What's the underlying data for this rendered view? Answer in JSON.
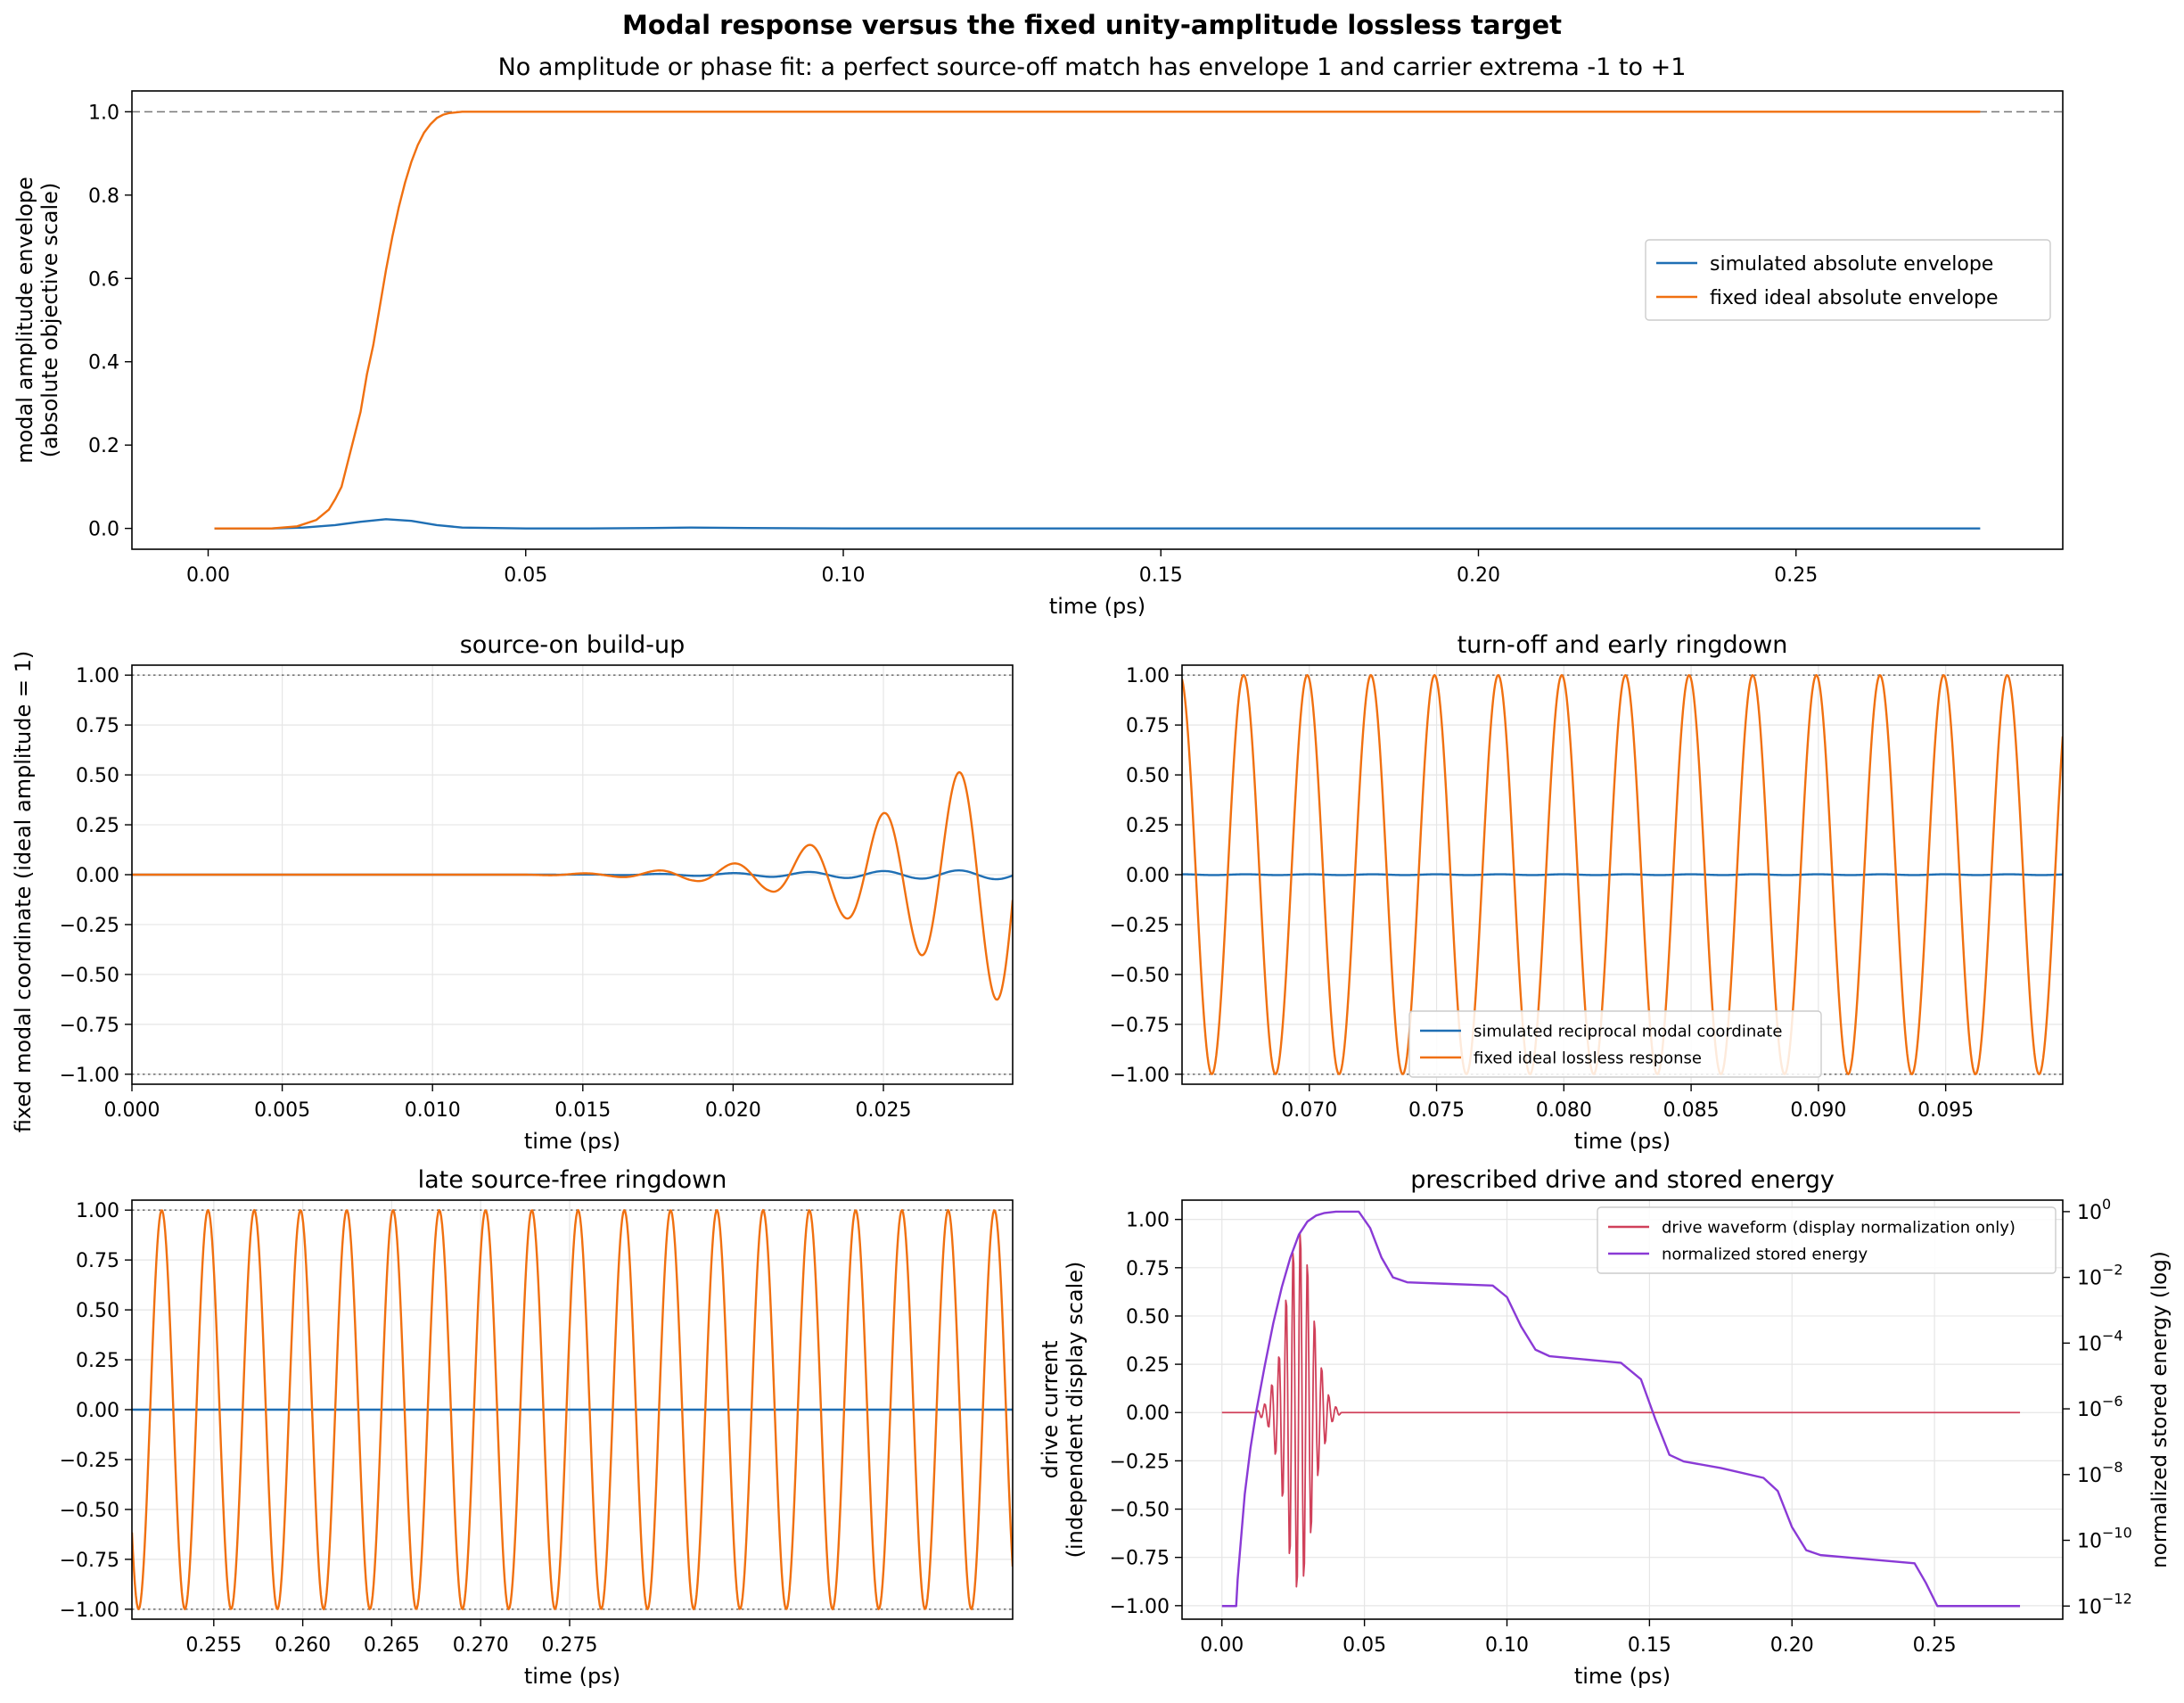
{
  "figure": {
    "title": "Modal response versus the fixed unity-amplitude lossless target",
    "subtitle": "No amplitude or phase fit: a perfect source-off match has envelope 1 and carrier extrema -1 to +1",
    "shared_ylabel": "fixed modal coordinate (ideal amplitude = 1)"
  },
  "colors": {
    "simulated": "#1f6fb4",
    "ideal": "#f07010",
    "drive": "#d0405a",
    "energy": "#8a3ad6",
    "reference_line": "#777777",
    "grid": "#e6e6e6"
  },
  "chart_data": [
    {
      "id": "envelope",
      "type": "line",
      "title": "",
      "xlabel": "time (ps)",
      "ylabel": [
        "modal amplitude envelope",
        "(absolute objective scale)"
      ],
      "xlim": [
        -0.012,
        0.292
      ],
      "ylim": [
        -0.05,
        1.05
      ],
      "xticks": [
        0.0,
        0.05,
        0.1,
        0.15,
        0.2,
        0.25
      ],
      "xtick_labels": [
        "0.00",
        "0.05",
        "0.10",
        "0.15",
        "0.20",
        "0.25"
      ],
      "yticks": [
        0.0,
        0.2,
        0.4,
        0.6,
        0.8,
        1.0
      ],
      "ytick_labels": [
        "0.0",
        "0.2",
        "0.4",
        "0.6",
        "0.8",
        "1.0"
      ],
      "grid": false,
      "reference_lines": [
        {
          "y": 1.0,
          "style": "dashed"
        }
      ],
      "legend": {
        "position": "center-right",
        "entries": [
          "simulated absolute envelope",
          "fixed ideal absolute envelope"
        ]
      },
      "series": [
        {
          "name": "simulated absolute envelope",
          "color_key": "simulated",
          "x": [
            0.001,
            0.01,
            0.015,
            0.02,
            0.024,
            0.028,
            0.032,
            0.036,
            0.04,
            0.05,
            0.06,
            0.07,
            0.076,
            0.085,
            0.1,
            0.15,
            0.2,
            0.279
          ],
          "y": [
            0.0,
            0.0,
            0.002,
            0.008,
            0.016,
            0.022,
            0.018,
            0.008,
            0.002,
            0.0,
            0.0,
            0.001,
            0.002,
            0.001,
            0.0,
            0.0,
            0.0,
            0.0
          ]
        },
        {
          "name": "fixed ideal absolute envelope",
          "color_key": "ideal",
          "x": [
            0.001,
            0.01,
            0.014,
            0.017,
            0.019,
            0.02,
            0.021,
            0.022,
            0.023,
            0.024,
            0.025,
            0.026,
            0.027,
            0.028,
            0.029,
            0.03,
            0.031,
            0.032,
            0.033,
            0.034,
            0.035,
            0.036,
            0.037,
            0.038,
            0.04,
            0.042,
            0.05,
            0.1,
            0.15,
            0.2,
            0.279
          ],
          "y": [
            0.0,
            0.0,
            0.005,
            0.02,
            0.045,
            0.07,
            0.1,
            0.16,
            0.22,
            0.28,
            0.37,
            0.44,
            0.53,
            0.62,
            0.7,
            0.77,
            0.83,
            0.88,
            0.92,
            0.95,
            0.97,
            0.985,
            0.993,
            0.997,
            1.0,
            1.0,
            1.0,
            1.0,
            1.0,
            1.0,
            1.0
          ]
        }
      ]
    },
    {
      "id": "buildup",
      "type": "line",
      "title": "source-on build-up",
      "xlabel": "time (ps)",
      "ylabel": "",
      "xlim": [
        0.0,
        0.0293
      ],
      "ylim": [
        -1.05,
        1.05
      ],
      "xticks": [
        0.0,
        0.005,
        0.01,
        0.015,
        0.02,
        0.025
      ],
      "xtick_labels": [
        "0.000",
        "0.005",
        "0.010",
        "0.015",
        "0.020",
        "0.025"
      ],
      "yticks": [
        -1.0,
        -0.75,
        -0.5,
        -0.25,
        0.0,
        0.25,
        0.5,
        0.75,
        1.0
      ],
      "ytick_labels": [
        "−1.00",
        "−0.75",
        "−0.50",
        "−0.25",
        "0.00",
        "0.25",
        "0.50",
        "0.75",
        "1.00"
      ],
      "grid": true,
      "reference_lines": [
        {
          "y": 1.0,
          "style": "dotted"
        },
        {
          "y": -1.0,
          "style": "dotted"
        }
      ],
      "legend": null,
      "carrier_period_ps": 0.0025,
      "series": [
        {
          "name": "simulated reciprocal modal coordinate",
          "color_key": "simulated",
          "form": "carrier",
          "phase": 0.0,
          "envelope_t": [
            0.0,
            0.014,
            0.017,
            0.02,
            0.024,
            0.028,
            0.0293
          ],
          "envelope_a": [
            0.0,
            0.0,
            0.003,
            0.008,
            0.017,
            0.022,
            0.023
          ]
        },
        {
          "name": "fixed ideal lossless response",
          "color_key": "ideal",
          "form": "carrier",
          "phase": 0.0,
          "envelope_t": [
            0.0,
            0.013,
            0.016,
            0.0187,
            0.0212,
            0.0235,
            0.026,
            0.0285,
            0.0293
          ],
          "envelope_a": [
            0.0,
            0.0,
            0.01,
            0.03,
            0.08,
            0.2,
            0.38,
            0.6,
            0.68
          ]
        }
      ]
    },
    {
      "id": "early",
      "type": "line",
      "title": "turn-off and early ringdown",
      "xlabel": "time (ps)",
      "ylabel": "",
      "xlim": [
        0.065,
        0.0996
      ],
      "ylim": [
        -1.05,
        1.05
      ],
      "xticks": [
        0.07,
        0.075,
        0.08,
        0.085,
        0.09,
        0.095
      ],
      "xtick_labels": [
        "0.070",
        "0.075",
        "0.080",
        "0.085",
        "0.090",
        "0.095"
      ],
      "yticks": [
        -1.0,
        -0.75,
        -0.5,
        -0.25,
        0.0,
        0.25,
        0.5,
        0.75,
        1.0
      ],
      "ytick_labels": [
        "−1.00",
        "−0.75",
        "−0.50",
        "−0.25",
        "0.00",
        "0.25",
        "0.50",
        "0.75",
        "1.00"
      ],
      "grid": true,
      "reference_lines": [
        {
          "y": 1.0,
          "style": "dotted"
        },
        {
          "y": -1.0,
          "style": "dotted"
        }
      ],
      "legend": {
        "position": "lower-center",
        "entries": [
          "simulated reciprocal modal coordinate",
          "fixed ideal lossless response"
        ]
      },
      "carrier_period_ps": 0.0025,
      "series": [
        {
          "name": "simulated reciprocal modal coordinate",
          "color_key": "simulated",
          "form": "carrier",
          "phase": 0.0,
          "envelope_t": [
            0.065,
            0.0996
          ],
          "envelope_a": [
            0.002,
            0.002
          ]
        },
        {
          "name": "fixed ideal lossless response",
          "color_key": "ideal",
          "form": "carrier",
          "phase": 0.2,
          "envelope_t": [
            0.065,
            0.0996
          ],
          "envelope_a": [
            1.0,
            1.0
          ]
        }
      ]
    },
    {
      "id": "late",
      "type": "line",
      "title": "late source-free ringdown",
      "xlabel": "time (ps)",
      "ylabel": "",
      "xlim": [
        0.2504,
        0.2999
      ],
      "ylim": [
        -1.05,
        1.05
      ],
      "xticks": [
        0.255,
        0.26,
        0.265,
        0.27,
        0.275
      ],
      "xtick_labels": [
        "0.255",
        "0.260",
        "0.265",
        "0.270",
        "0.275"
      ],
      "yticks": [
        -1.0,
        -0.75,
        -0.5,
        -0.25,
        0.0,
        0.25,
        0.5,
        0.75,
        1.0
      ],
      "ytick_labels": [
        "−1.00",
        "−0.75",
        "−0.50",
        "−0.25",
        "0.00",
        "0.25",
        "0.50",
        "0.75",
        "1.00"
      ],
      "grid": true,
      "reference_lines": [
        {
          "y": 1.0,
          "style": "dotted"
        },
        {
          "y": -1.0,
          "style": "dotted"
        }
      ],
      "legend": null,
      "carrier_period_ps": 0.0026,
      "series": [
        {
          "name": "simulated reciprocal modal coordinate",
          "color_key": "simulated",
          "form": "carrier",
          "phase": 0.0,
          "envelope_t": [
            0.2504,
            0.2999
          ],
          "envelope_a": [
            0.0,
            0.0
          ]
        },
        {
          "name": "fixed ideal lossless response",
          "color_key": "ideal",
          "form": "carrier",
          "phase": 0.3,
          "envelope_t": [
            0.2504,
            0.2999
          ],
          "envelope_a": [
            1.0,
            1.0
          ]
        }
      ]
    },
    {
      "id": "drive",
      "type": "line",
      "title": "prescribed drive and stored energy",
      "xlabel": "time (ps)",
      "ylabel": [
        "drive current",
        "(independent display scale)"
      ],
      "y2label": "normalized stored energy (log)",
      "xlim": [
        -0.014,
        0.295
      ],
      "ylim": [
        -1.07,
        1.1
      ],
      "y2scale": "log",
      "y2lim_exp": [
        -12.4,
        0.35
      ],
      "xticks": [
        0.0,
        0.05,
        0.1,
        0.15,
        0.2,
        0.25
      ],
      "xtick_labels": [
        "0.00",
        "0.05",
        "0.10",
        "0.15",
        "0.20",
        "0.25"
      ],
      "yticks": [
        -1.0,
        -0.75,
        -0.5,
        -0.25,
        0.0,
        0.25,
        0.5,
        0.75,
        1.0
      ],
      "ytick_labels": [
        "−1.00",
        "−0.75",
        "−0.50",
        "−0.25",
        "0.00",
        "0.25",
        "0.50",
        "0.75",
        "1.00"
      ],
      "y2ticks_exp": [
        0,
        -2,
        -4,
        -6,
        -8,
        -10,
        -12
      ],
      "y2tick_base": "10",
      "y2tick_exponents": [
        "0",
        "−2",
        "−4",
        "−6",
        "−8",
        "−10",
        "−12"
      ],
      "grid": true,
      "legend": {
        "position": "top-right",
        "entries": [
          "drive waveform (display normalization only)",
          "normalized stored energy"
        ]
      },
      "carrier_period_ps": 0.0025,
      "series": [
        {
          "name": "drive waveform (display normalization only)",
          "color_key": "drive",
          "axis": "left",
          "form": "carrier",
          "phase": 0.0,
          "envelope_t": [
            0.0,
            0.012,
            0.016,
            0.02,
            0.024,
            0.027,
            0.03,
            0.034,
            0.038,
            0.042,
            0.28
          ],
          "envelope_a": [
            0.0,
            0.0,
            0.06,
            0.3,
            0.8,
            1.0,
            0.8,
            0.3,
            0.06,
            0.0,
            0.0
          ]
        },
        {
          "name": "normalized stored energy",
          "color_key": "energy",
          "axis": "right",
          "x": [
            0.0,
            0.005,
            0.0055,
            0.008,
            0.01,
            0.012,
            0.015,
            0.018,
            0.021,
            0.024,
            0.027,
            0.03,
            0.033,
            0.036,
            0.04,
            0.048,
            0.052,
            0.056,
            0.06,
            0.065,
            0.08,
            0.095,
            0.1,
            0.105,
            0.11,
            0.115,
            0.14,
            0.147,
            0.152,
            0.157,
            0.162,
            0.175,
            0.19,
            0.195,
            0.2,
            0.205,
            0.21,
            0.23,
            0.243,
            0.247,
            0.251,
            0.253,
            0.28
          ],
          "y_log10": [
            -12.0,
            -12.0,
            -11.2,
            -8.6,
            -7.2,
            -6.1,
            -4.7,
            -3.4,
            -2.3,
            -1.4,
            -0.7,
            -0.3,
            -0.12,
            -0.04,
            0.0,
            0.0,
            -0.5,
            -1.4,
            -2.0,
            -2.15,
            -2.2,
            -2.25,
            -2.6,
            -3.5,
            -4.2,
            -4.4,
            -4.6,
            -5.1,
            -6.3,
            -7.4,
            -7.6,
            -7.8,
            -8.1,
            -8.5,
            -9.6,
            -10.3,
            -10.45,
            -10.6,
            -10.7,
            -11.3,
            -12.0,
            -12.0,
            -12.0
          ]
        }
      ]
    }
  ]
}
